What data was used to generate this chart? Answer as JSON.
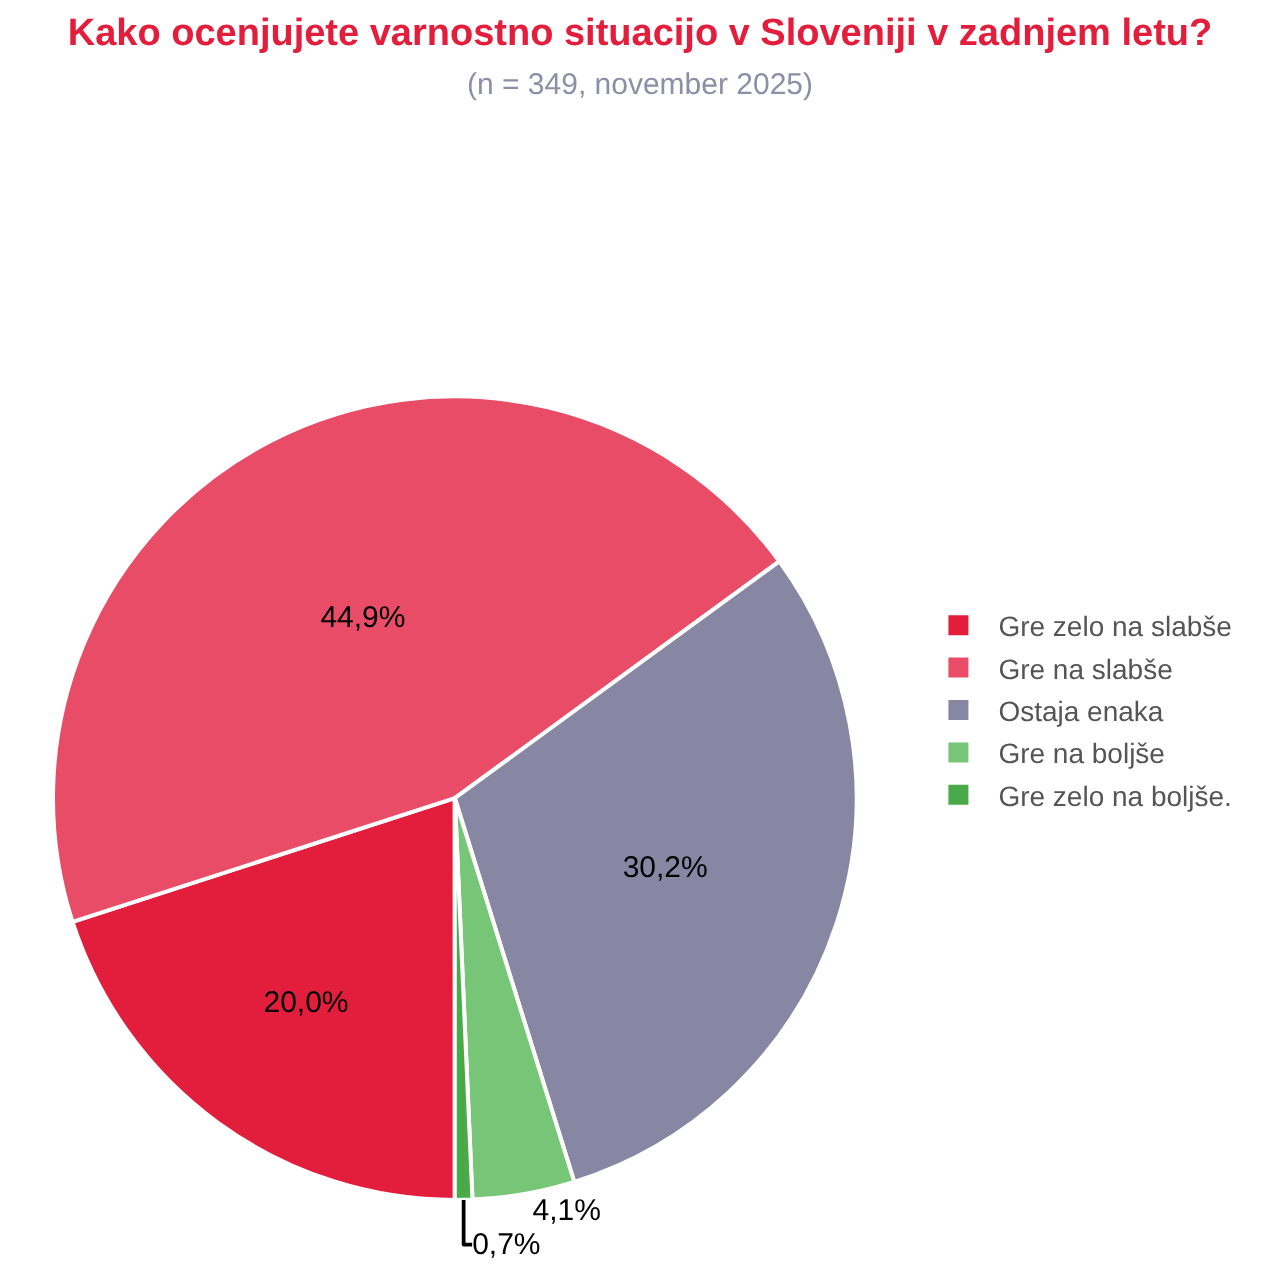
{
  "chart_data": {
    "type": "pie",
    "title": "Kako ocenjujete varnostno situacijo v Sloveniji v zadnjem letu?",
    "subtitle": "(n = 349, november 2025)",
    "categories": [
      "Gre zelo na slabše",
      "Gre na slabše",
      "Ostaja enaka",
      "Gre na boljše",
      "Gre zelo na boljše."
    ],
    "values": [
      20.0,
      44.9,
      30.2,
      4.1,
      0.7
    ],
    "value_labels": [
      "20,0%",
      "44,9%",
      "30,2%",
      "4,1%",
      "0,7%"
    ],
    "colors": [
      "#e31e3c",
      "#e84c66",
      "#8787a3",
      "#77c677",
      "#4aaa4a"
    ],
    "legend": "right"
  }
}
